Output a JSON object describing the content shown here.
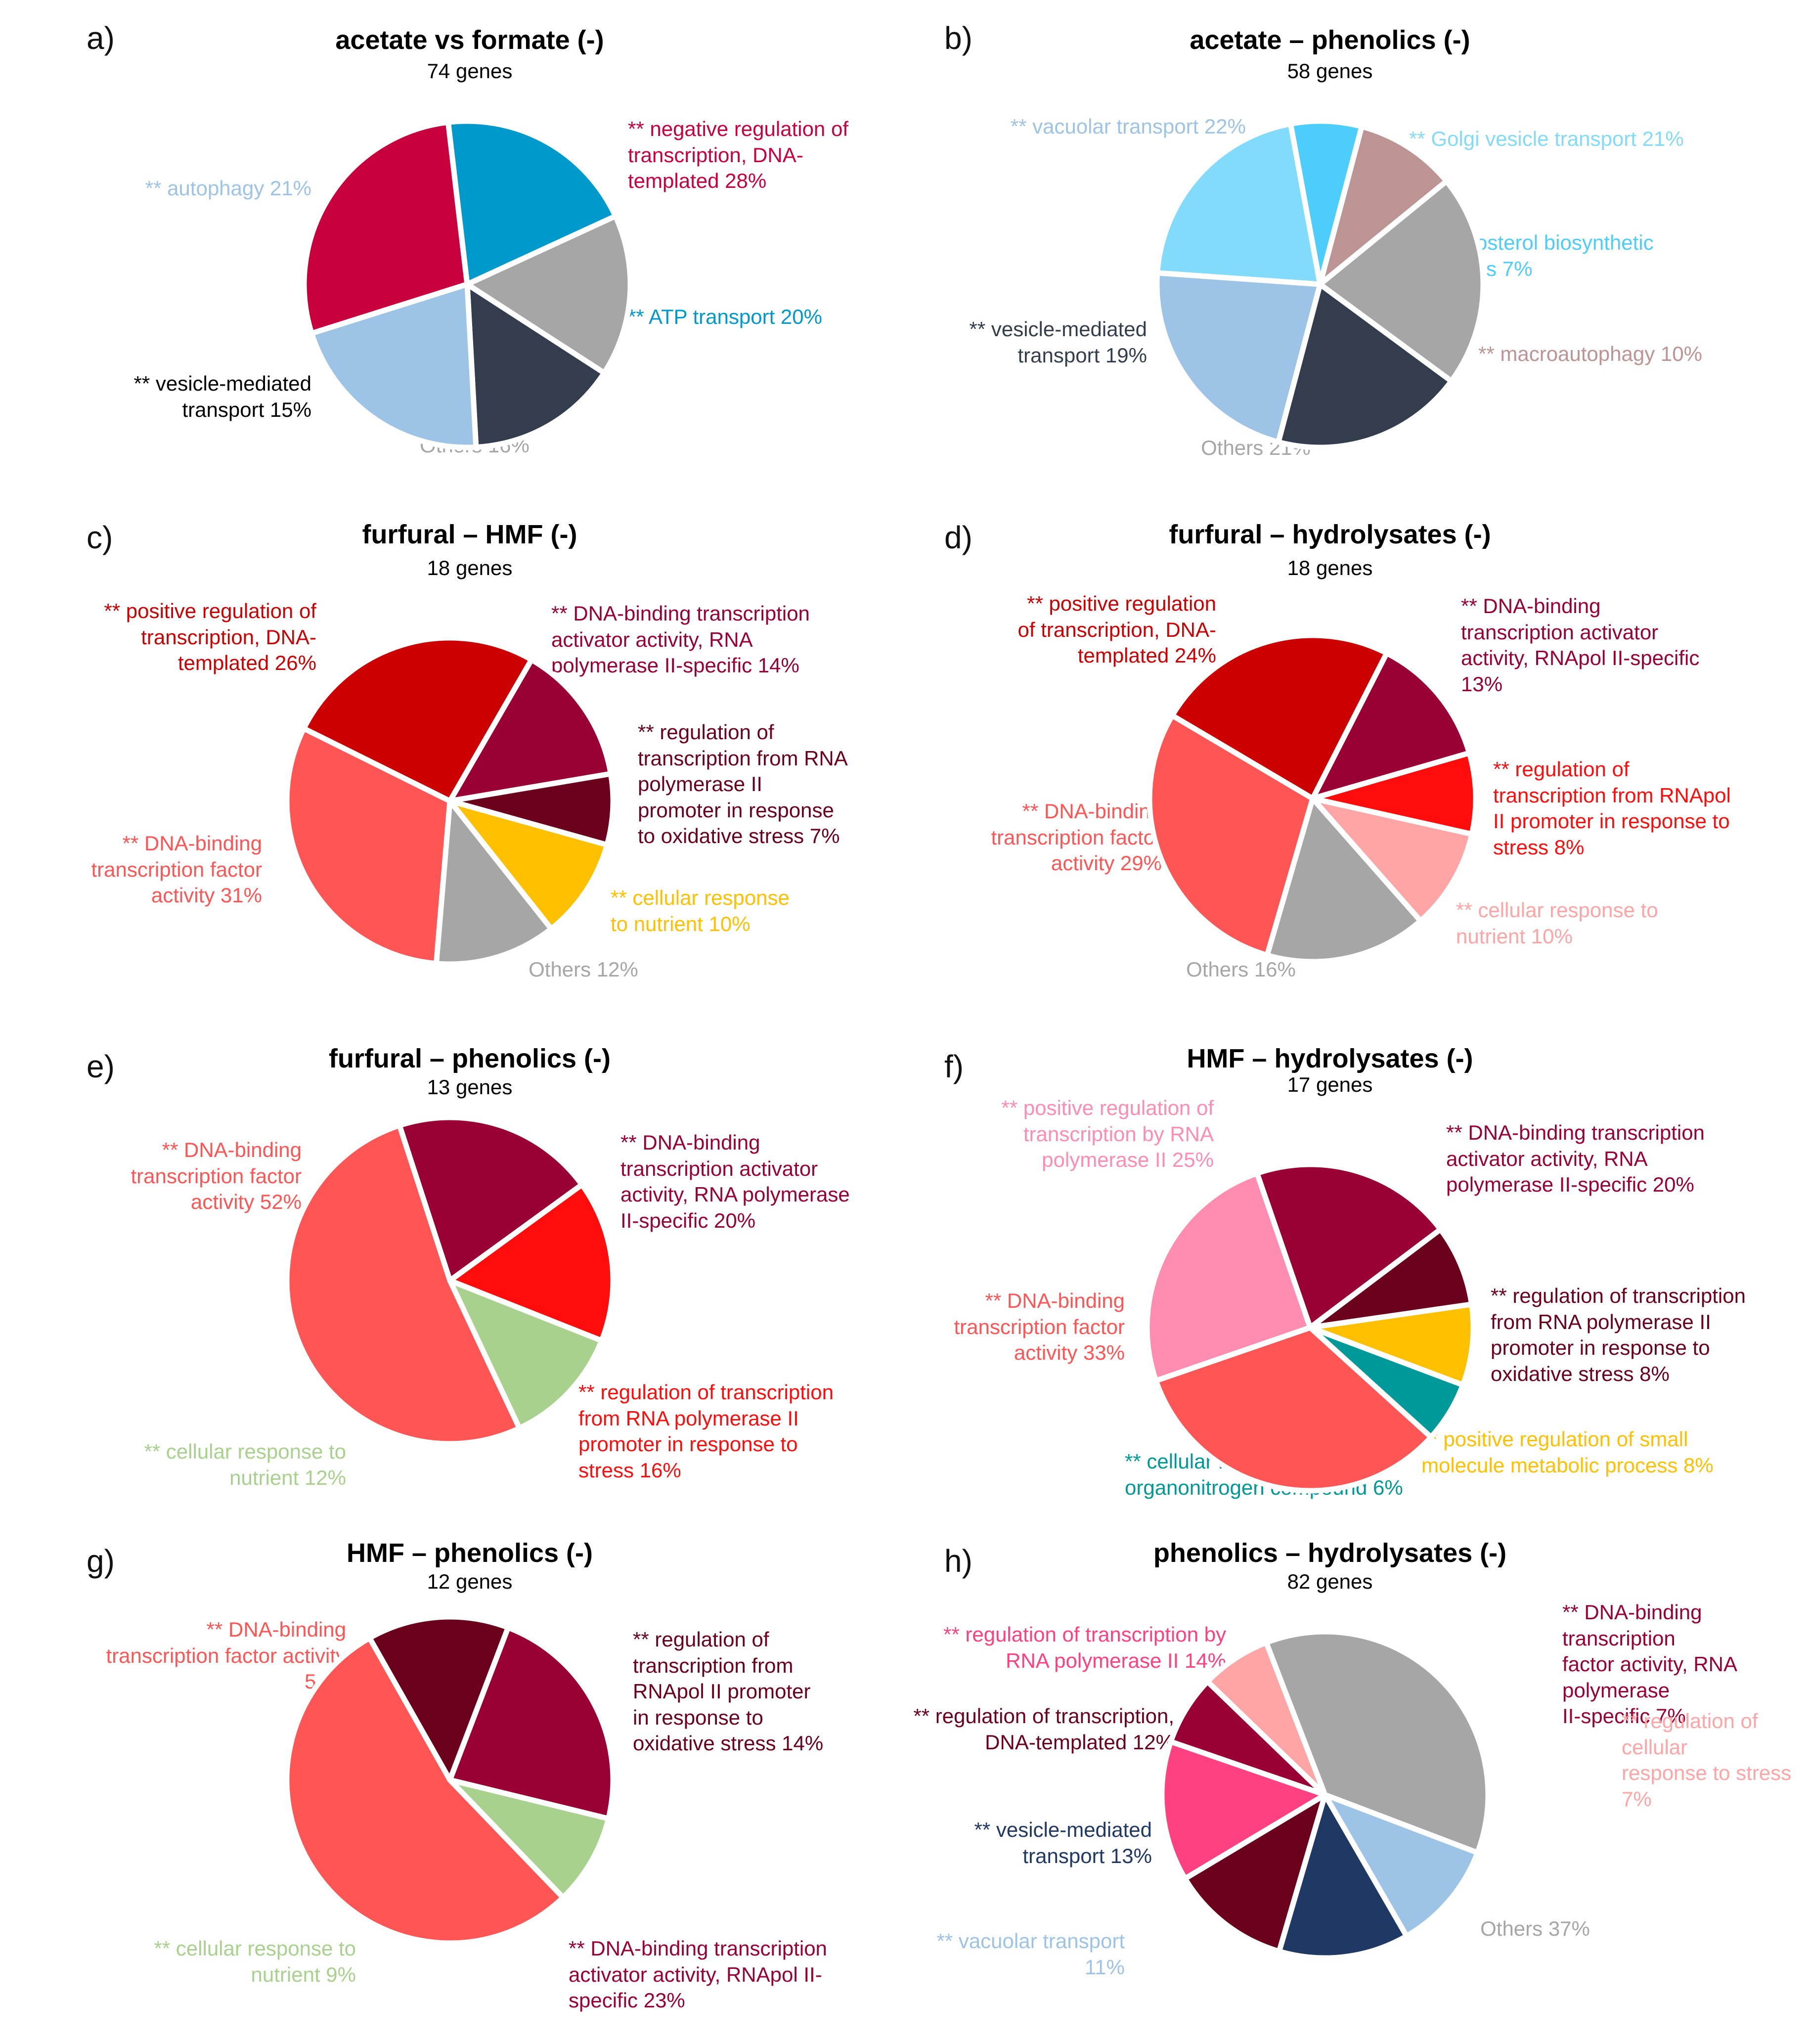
{
  "chart_data": [
    {
      "type": "pie",
      "panel": "a)",
      "title": "acetate vs formate (-)",
      "subtitle": "74 genes",
      "slices": [
        {
          "label": "** negative regulation of transcription, DNA-templated 28%",
          "value": 28,
          "color": "#c9003e",
          "label_lines": [
            "** negative regulation of",
            "transcription, DNA-",
            "templated 28%"
          ]
        },
        {
          "label": "** ATP transport 20%",
          "value": 20,
          "color": "#0099cc",
          "label_lines": [
            "** ATP transport 20%"
          ]
        },
        {
          "label": "Others 16%",
          "value": 16,
          "color": "#a6a6a6",
          "label_lines": [
            "Others 16%"
          ]
        },
        {
          "label": "** vesicle-mediated transport 15%",
          "value": 15,
          "color": "#333d4d",
          "text_color": "#000000",
          "label_lines": [
            "** vesicle-mediated",
            "transport 15%"
          ]
        },
        {
          "label": "** autophagy 21%",
          "value": 21,
          "color": "#9dc3e6",
          "label_lines": [
            "** autophagy 21%"
          ]
        }
      ]
    },
    {
      "type": "pie",
      "panel": "b)",
      "title": "acetate – phenolics (-)",
      "subtitle": "58 genes",
      "slices": [
        {
          "label": "** Golgi vesicle transport 21%",
          "value": 21,
          "color": "#83dbfc",
          "label_lines": [
            "** Golgi vesicle transport 21%"
          ]
        },
        {
          "label": "** ergosterol biosynthetic process 7%",
          "value": 7,
          "color": "#4dcdfc",
          "label_lines": [
            "** ergosterol biosynthetic",
            "process 7%"
          ]
        },
        {
          "label": "** macroautophagy 10%",
          "value": 10,
          "color": "#bd9494",
          "label_lines": [
            "** macroautophagy 10%"
          ]
        },
        {
          "label": "Others 21%",
          "value": 21,
          "color": "#a6a6a6",
          "label_lines": [
            "Others 21%"
          ]
        },
        {
          "label": "** vesicle-mediated transport 19%",
          "value": 19,
          "color": "#333d4d",
          "label_lines": [
            "** vesicle-mediated",
            "transport 19%"
          ]
        },
        {
          "label": "** vacuolar transport 22%",
          "value": 22,
          "color": "#9dc3e6",
          "label_lines": [
            "** vacuolar transport 22%"
          ]
        }
      ]
    },
    {
      "type": "pie",
      "panel": "c)",
      "title": "furfural – HMF (-)",
      "subtitle": "18 genes",
      "slices": [
        {
          "label": "** DNA-binding transcription activator activity, RNA polymerase II-specific 14%",
          "value": 14,
          "color": "#990033",
          "label_lines": [
            "** DNA-binding transcription",
            "activator activity, RNA",
            "polymerase II-specific 14%"
          ]
        },
        {
          "label": "** regulation of transcription from RNA polymerase II promoter in response to oxidative stress 7%",
          "value": 7,
          "color": "#6b001c",
          "label_lines": [
            "** regulation of",
            "transcription from RNA",
            "polymerase II",
            "promoter in response",
            "to oxidative stress 7%"
          ]
        },
        {
          "label": "** cellular response to nutrient 10%",
          "value": 10,
          "color": "#ffc000",
          "label_lines": [
            "** cellular response",
            "to nutrient 10%"
          ]
        },
        {
          "label": "Others 12%",
          "value": 12,
          "color": "#a6a6a6",
          "label_lines": [
            "Others 12%"
          ]
        },
        {
          "label": "** DNA-binding transcription factor activity 31%",
          "value": 31,
          "color": "#ff5555",
          "label_lines": [
            "** DNA-binding",
            "transcription factor",
            "activity 31%"
          ]
        },
        {
          "label": "** positive regulation of transcription, DNA-templated 26%",
          "value": 26,
          "color": "#cc0000",
          "label_lines": [
            "** positive regulation of",
            "transcription, DNA-",
            "templated 26%"
          ]
        }
      ]
    },
    {
      "type": "pie",
      "panel": "d)",
      "title": "furfural – hydrolysates (-)",
      "subtitle": "18 genes",
      "slices": [
        {
          "label": "** DNA-binding transcription activator activity, RNApol II-specific 13%",
          "value": 13,
          "color": "#990033",
          "label_lines": [
            "** DNA-binding",
            "transcription activator",
            "activity, RNApol II-specific",
            "13%"
          ]
        },
        {
          "label": "** regulation of transcription from RNApol II promoter in response to stress 8%",
          "value": 8,
          "color": "#ff0d0d",
          "label_lines": [
            "** regulation of",
            "transcription from RNApol",
            "II promoter in response to",
            "stress 8%"
          ]
        },
        {
          "label": "** cellular response to nutrient 10%",
          "value": 10,
          "color": "#ffa5a5",
          "label_lines": [
            "** cellular response to",
            "nutrient 10%"
          ]
        },
        {
          "label": "Others 16%",
          "value": 16,
          "color": "#a6a6a6",
          "label_lines": [
            "Others 16%"
          ]
        },
        {
          "label": "** DNA-binding transcription factor activity 29%",
          "value": 29,
          "color": "#ff5555",
          "label_lines": [
            "** DNA-binding",
            "transcription factor",
            "activity 29%"
          ]
        },
        {
          "label": "** positive regulation of transcription, DNA-templated 24%",
          "value": 24,
          "color": "#cc0000",
          "label_lines": [
            "** positive regulation",
            "of transcription, DNA-",
            "templated 24%"
          ]
        }
      ]
    },
    {
      "type": "pie",
      "panel": "e)",
      "title": "furfural – phenolics (-)",
      "subtitle": "13 genes",
      "slices": [
        {
          "label": "** DNA-binding transcription activator activity, RNA polymerase II-specific 20%",
          "value": 20,
          "color": "#990033",
          "label_lines": [
            "** DNA-binding",
            "transcription activator",
            "activity, RNA polymerase",
            "II-specific 20%"
          ]
        },
        {
          "label": "** regulation of transcription from RNA polymerase II promoter in response to stress 16%",
          "value": 16,
          "color": "#ff0d0d",
          "label_lines": [
            "** regulation of transcription",
            "from RNA polymerase II",
            "promoter in response to",
            "stress 16%"
          ]
        },
        {
          "label": "** cellular response to nutrient 12%",
          "value": 12,
          "color": "#a9d18e",
          "label_lines": [
            "** cellular response to",
            "nutrient 12%"
          ]
        },
        {
          "label": "** DNA-binding transcription factor activity 52%",
          "value": 52,
          "color": "#ff5555",
          "label_lines": [
            "** DNA-binding",
            "transcription factor",
            "activity 52%"
          ]
        }
      ]
    },
    {
      "type": "pie",
      "panel": "f)",
      "title": "HMF – hydrolysates (-)",
      "subtitle": "17 genes",
      "slices": [
        {
          "label": "** DNA-binding transcription activator activity, RNA polymerase II-specific 20%",
          "value": 20,
          "color": "#990033",
          "label_lines": [
            "** DNA-binding transcription",
            "activator activity, RNA",
            "polymerase II-specific 20%"
          ]
        },
        {
          "label": "** regulation of transcription from RNA polymerase II promoter in response to oxidative stress 8%",
          "value": 8,
          "color": "#6b001c",
          "label_lines": [
            "** regulation of transcription",
            "from RNA polymerase II",
            "promoter in response to",
            "oxidative stress 8%"
          ]
        },
        {
          "label": "** positive regulation of small molecule metabolic process 8%",
          "value": 8,
          "color": "#ffc000",
          "label_lines": [
            "** positive regulation of small",
            "molecule metabolic process 8%"
          ]
        },
        {
          "label": "** cellular response to organonitrogen compound 6%",
          "value": 6,
          "color": "#009999",
          "label_lines": [
            "** cellular response to",
            "organonitrogen compound 6%"
          ]
        },
        {
          "label": "** DNA-binding transcription factor activity 33%",
          "value": 33,
          "color": "#ff5555",
          "label_lines": [
            "** DNA-binding",
            "transcription factor",
            "activity 33%"
          ]
        },
        {
          "label": "** positive regulation of transcription by RNA polymerase II 25%",
          "value": 25,
          "color": "#ff8db2",
          "label_lines": [
            "** positive regulation of",
            "transcription by RNA",
            "polymerase II 25%"
          ]
        }
      ]
    },
    {
      "type": "pie",
      "panel": "g)",
      "title": "HMF – phenolics (-)",
      "subtitle": "12 genes",
      "slices": [
        {
          "label": "** regulation of transcription from RNApol II promoter in response to oxidative stress 14%",
          "value": 14,
          "color": "#6b001c",
          "label_lines": [
            "** regulation of",
            "transcription from",
            "RNApol II promoter",
            "in response to",
            "oxidative stress 14%"
          ]
        },
        {
          "label": "** DNA-binding transcription activator activity, RNApol II-specific 23%",
          "value": 23,
          "color": "#990033",
          "label_lines": [
            "** DNA-binding transcription",
            "activator activity, RNApol II-",
            "specific 23%"
          ]
        },
        {
          "label": "** cellular response to nutrient 9%",
          "value": 9,
          "color": "#a9d18e",
          "label_lines": [
            "** cellular response to",
            "nutrient 9%"
          ]
        },
        {
          "label": "** DNA-binding transcription factor activity 54%",
          "value": 54,
          "color": "#ff5555",
          "label_lines": [
            "** DNA-binding",
            "transcription factor activity",
            "54%"
          ]
        }
      ]
    },
    {
      "type": "pie",
      "panel": "h)",
      "title": "phenolics – hydrolysates (-)",
      "subtitle": "82 genes",
      "slices": [
        {
          "label": "** DNA-binding transcription factor activity, RNA polymerase II-specific 7%",
          "value": 7,
          "color": "#990033",
          "label_lines": [
            "** DNA-binding transcription",
            "factor activity, RNA polymerase",
            "II-specific 7%"
          ]
        },
        {
          "label": "** regulation of cellular response to stress 7%",
          "value": 7,
          "color": "#ffa5a5",
          "label_lines": [
            "** regulation of cellular",
            "response to stress 7%"
          ]
        },
        {
          "label": "Others 37%",
          "value": 37,
          "color": "#a6a6a6",
          "label_lines": [
            "Others 37%"
          ]
        },
        {
          "label": "** vacuolar transport 11%",
          "value": 11,
          "color": "#9dc3e6",
          "label_lines": [
            "** vacuolar transport",
            "11%"
          ]
        },
        {
          "label": "** vesicle-mediated transport 13%",
          "value": 13,
          "color": "#1f3864",
          "label_lines": [
            "** vesicle-mediated",
            "transport 13%"
          ]
        },
        {
          "label": "** regulation of transcription, DNA-templated 12%",
          "value": 12,
          "color": "#6b001c",
          "label_lines": [
            "** regulation of transcription,",
            "DNA-templated 12%"
          ]
        },
        {
          "label": "** regulation of transcription by RNA polymerase II 14%",
          "value": 14,
          "color": "#ff4081",
          "label_lines": [
            "** regulation of transcription by",
            "RNA polymerase II 14%"
          ]
        }
      ]
    }
  ]
}
